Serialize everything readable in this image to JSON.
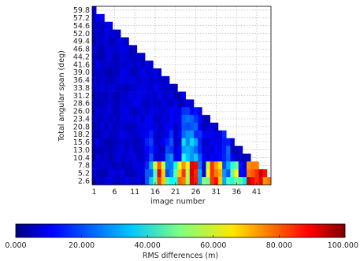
{
  "chart_data": {
    "type": "heatmap",
    "title": "",
    "xlabel": "image number",
    "ylabel": "Total angular span (deg)",
    "x_tick_labels": [
      "1",
      "6",
      "11",
      "16",
      "21",
      "26",
      "31",
      "36",
      "41"
    ],
    "x_range": [
      1,
      44
    ],
    "y_tick_labels": [
      "59.8",
      "57.2",
      "54.6",
      "52.0",
      "49.4",
      "46.8",
      "44.2",
      "41.6",
      "39.0",
      "36.4",
      "33.8",
      "31.2",
      "28.6",
      "26.0",
      "23.4",
      "20.8",
      "18.2",
      "15.6",
      "13.0",
      "10.4",
      "7.8",
      "5.2",
      "2.6"
    ],
    "y_range": [
      2.6,
      59.8
    ],
    "y_step": 2.6,
    "grid": true,
    "colorbar": {
      "label": "RMS differences (m)",
      "min": 0,
      "max": 100,
      "tick_labels": [
        "0.000",
        "20.000",
        "40.000",
        "60.000",
        "80.000",
        "100.000"
      ],
      "tick_values": [
        0,
        20,
        40,
        60,
        80,
        100
      ],
      "colormap": "jet"
    },
    "structure": "Lower-left triangular matrix: each image number x has valid angular spans only up to a diagonal limit; values are mostly low (0-10 m), rising to 40-100 m for small spans (2.6-10.4 deg) around image numbers 16-44, especially near 17-19, 22-27, 30-33 and 40-44."
  }
}
